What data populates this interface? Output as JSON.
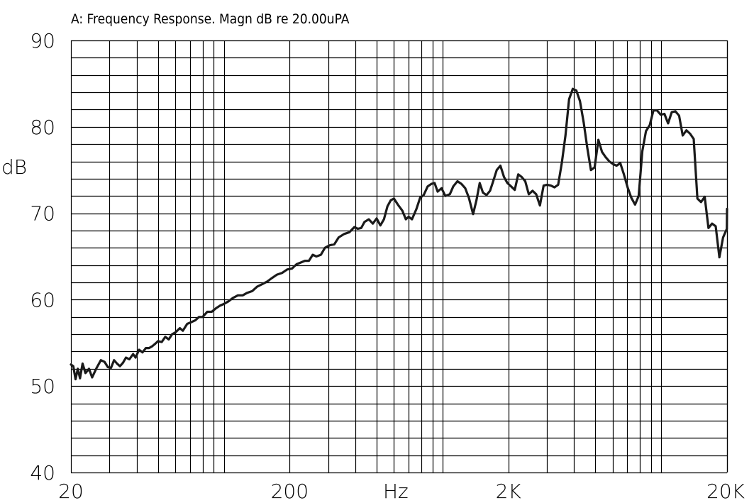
{
  "chart_data": {
    "type": "line",
    "title": "A: Frequency Response. Magn dB re 20.00uPA",
    "xlabel": "Hz",
    "ylabel": "dB",
    "x_scale": "log",
    "xlim": [
      20,
      20000
    ],
    "ylim": [
      40,
      90
    ],
    "x_ticks": [
      20,
      200,
      2000,
      20000
    ],
    "x_tick_labels": [
      "20",
      "200",
      "2K",
      "20K"
    ],
    "y_ticks": [
      40,
      50,
      60,
      70,
      80,
      90
    ],
    "y_tick_labels": [
      "40",
      "50",
      "60",
      "70",
      "80",
      "90"
    ],
    "grid": true,
    "series": [
      {
        "color": "#1a1a1a",
        "points": [
          [
            20,
            52.5
          ],
          [
            20.5,
            52.3
          ],
          [
            21,
            50.8
          ],
          [
            21.5,
            52.0
          ],
          [
            22,
            50.9
          ],
          [
            22.6,
            52.6
          ],
          [
            23.3,
            51.5
          ],
          [
            24.2,
            52.0
          ],
          [
            25,
            51.0
          ],
          [
            26.2,
            52.1
          ],
          [
            27.4,
            53.0
          ],
          [
            28.5,
            52.8
          ],
          [
            29.5,
            52.2
          ],
          [
            30.5,
            52.1
          ],
          [
            31.5,
            53.0
          ],
          [
            32.5,
            52.6
          ],
          [
            33.5,
            52.3
          ],
          [
            34.6,
            52.7
          ],
          [
            35.7,
            53.3
          ],
          [
            37,
            53.1
          ],
          [
            38.5,
            53.7
          ],
          [
            39.5,
            53.3
          ],
          [
            41,
            54.2
          ],
          [
            42.5,
            53.9
          ],
          [
            44,
            54.4
          ],
          [
            45.5,
            54.4
          ],
          [
            47,
            54.6
          ],
          [
            48.6,
            54.9
          ],
          [
            50,
            55.2
          ],
          [
            52,
            55.1
          ],
          [
            54,
            55.7
          ],
          [
            56,
            55.4
          ],
          [
            58,
            56.0
          ],
          [
            60,
            56.2
          ],
          [
            63,
            56.7
          ],
          [
            65,
            56.4
          ],
          [
            68,
            57.2
          ],
          [
            71,
            57.4
          ],
          [
            74,
            57.6
          ],
          [
            77,
            58.0
          ],
          [
            80,
            58.0
          ],
          [
            84,
            58.6
          ],
          [
            88,
            58.6
          ],
          [
            92,
            59.0
          ],
          [
            96,
            59.3
          ],
          [
            100,
            59.5
          ],
          [
            105,
            59.8
          ],
          [
            110,
            60.2
          ],
          [
            116,
            60.5
          ],
          [
            122,
            60.5
          ],
          [
            128,
            60.8
          ],
          [
            135,
            61.0
          ],
          [
            142,
            61.5
          ],
          [
            150,
            61.8
          ],
          [
            158,
            62.1
          ],
          [
            166,
            62.5
          ],
          [
            175,
            62.9
          ],
          [
            185,
            63.1
          ],
          [
            195,
            63.5
          ],
          [
            205,
            63.6
          ],
          [
            215,
            64.1
          ],
          [
            225,
            64.3
          ],
          [
            235,
            64.5
          ],
          [
            245,
            64.5
          ],
          [
            255,
            65.2
          ],
          [
            265,
            65.0
          ],
          [
            278,
            65.2
          ],
          [
            290,
            66.0
          ],
          [
            305,
            66.3
          ],
          [
            320,
            66.4
          ],
          [
            335,
            67.2
          ],
          [
            355,
            67.6
          ],
          [
            375,
            67.8
          ],
          [
            395,
            68.4
          ],
          [
            410,
            68.2
          ],
          [
            425,
            68.3
          ],
          [
            440,
            69.0
          ],
          [
            460,
            69.3
          ],
          [
            480,
            68.8
          ],
          [
            500,
            69.4
          ],
          [
            520,
            68.6
          ],
          [
            540,
            69.3
          ],
          [
            560,
            70.8
          ],
          [
            580,
            71.5
          ],
          [
            600,
            71.7
          ],
          [
            625,
            71.0
          ],
          [
            655,
            70.3
          ],
          [
            680,
            69.3
          ],
          [
            700,
            69.6
          ],
          [
            725,
            69.3
          ],
          [
            760,
            70.5
          ],
          [
            790,
            71.8
          ],
          [
            820,
            72.1
          ],
          [
            855,
            73.1
          ],
          [
            890,
            73.4
          ],
          [
            920,
            73.5
          ],
          [
            950,
            72.5
          ],
          [
            990,
            72.9
          ],
          [
            1030,
            72.0
          ],
          [
            1080,
            72.2
          ],
          [
            1120,
            73.1
          ],
          [
            1170,
            73.7
          ],
          [
            1220,
            73.4
          ],
          [
            1270,
            72.9
          ],
          [
            1320,
            71.8
          ],
          [
            1380,
            69.9
          ],
          [
            1430,
            71.5
          ],
          [
            1480,
            73.5
          ],
          [
            1530,
            72.4
          ],
          [
            1590,
            72.1
          ],
          [
            1650,
            72.6
          ],
          [
            1710,
            73.8
          ],
          [
            1770,
            75.0
          ],
          [
            1840,
            75.5
          ],
          [
            1910,
            74.2
          ],
          [
            1980,
            73.5
          ],
          [
            2060,
            73.1
          ],
          [
            2140,
            72.7
          ],
          [
            2220,
            74.5
          ],
          [
            2300,
            74.2
          ],
          [
            2390,
            73.7
          ],
          [
            2480,
            72.2
          ],
          [
            2580,
            72.6
          ],
          [
            2680,
            72.2
          ],
          [
            2790,
            70.9
          ],
          [
            2900,
            73.2
          ],
          [
            3010,
            73.3
          ],
          [
            3130,
            73.2
          ],
          [
            3250,
            73.0
          ],
          [
            3380,
            73.3
          ],
          [
            3510,
            75.8
          ],
          [
            3650,
            79.0
          ],
          [
            3790,
            83.2
          ],
          [
            3940,
            84.4
          ],
          [
            4090,
            84.2
          ],
          [
            4250,
            83.0
          ],
          [
            4420,
            80.5
          ],
          [
            4590,
            77.6
          ],
          [
            4770,
            75.0
          ],
          [
            4960,
            75.3
          ],
          [
            5160,
            78.5
          ],
          [
            5360,
            77.1
          ],
          [
            5570,
            76.5
          ],
          [
            5790,
            76.0
          ],
          [
            6020,
            75.7
          ],
          [
            6250,
            75.5
          ],
          [
            6500,
            75.8
          ],
          [
            6750,
            74.5
          ],
          [
            7020,
            73.0
          ],
          [
            7300,
            71.8
          ],
          [
            7590,
            71.0
          ],
          [
            7890,
            72.0
          ],
          [
            8200,
            77.2
          ],
          [
            8520,
            79.5
          ],
          [
            8860,
            80.2
          ],
          [
            9210,
            81.9
          ],
          [
            9570,
            81.9
          ],
          [
            9950,
            81.4
          ],
          [
            10340,
            81.5
          ],
          [
            10750,
            80.4
          ],
          [
            11170,
            81.7
          ],
          [
            11610,
            81.8
          ],
          [
            12070,
            81.3
          ],
          [
            12540,
            79.0
          ],
          [
            13040,
            79.6
          ],
          [
            13550,
            79.2
          ],
          [
            14080,
            78.6
          ],
          [
            14640,
            71.7
          ],
          [
            15210,
            71.3
          ],
          [
            15810,
            71.9
          ],
          [
            16440,
            68.3
          ],
          [
            17080,
            68.8
          ],
          [
            17750,
            68.5
          ],
          [
            18450,
            64.9
          ],
          [
            19180,
            67.2
          ],
          [
            19950,
            68.2
          ],
          [
            20000,
            70.5
          ]
        ]
      }
    ]
  }
}
